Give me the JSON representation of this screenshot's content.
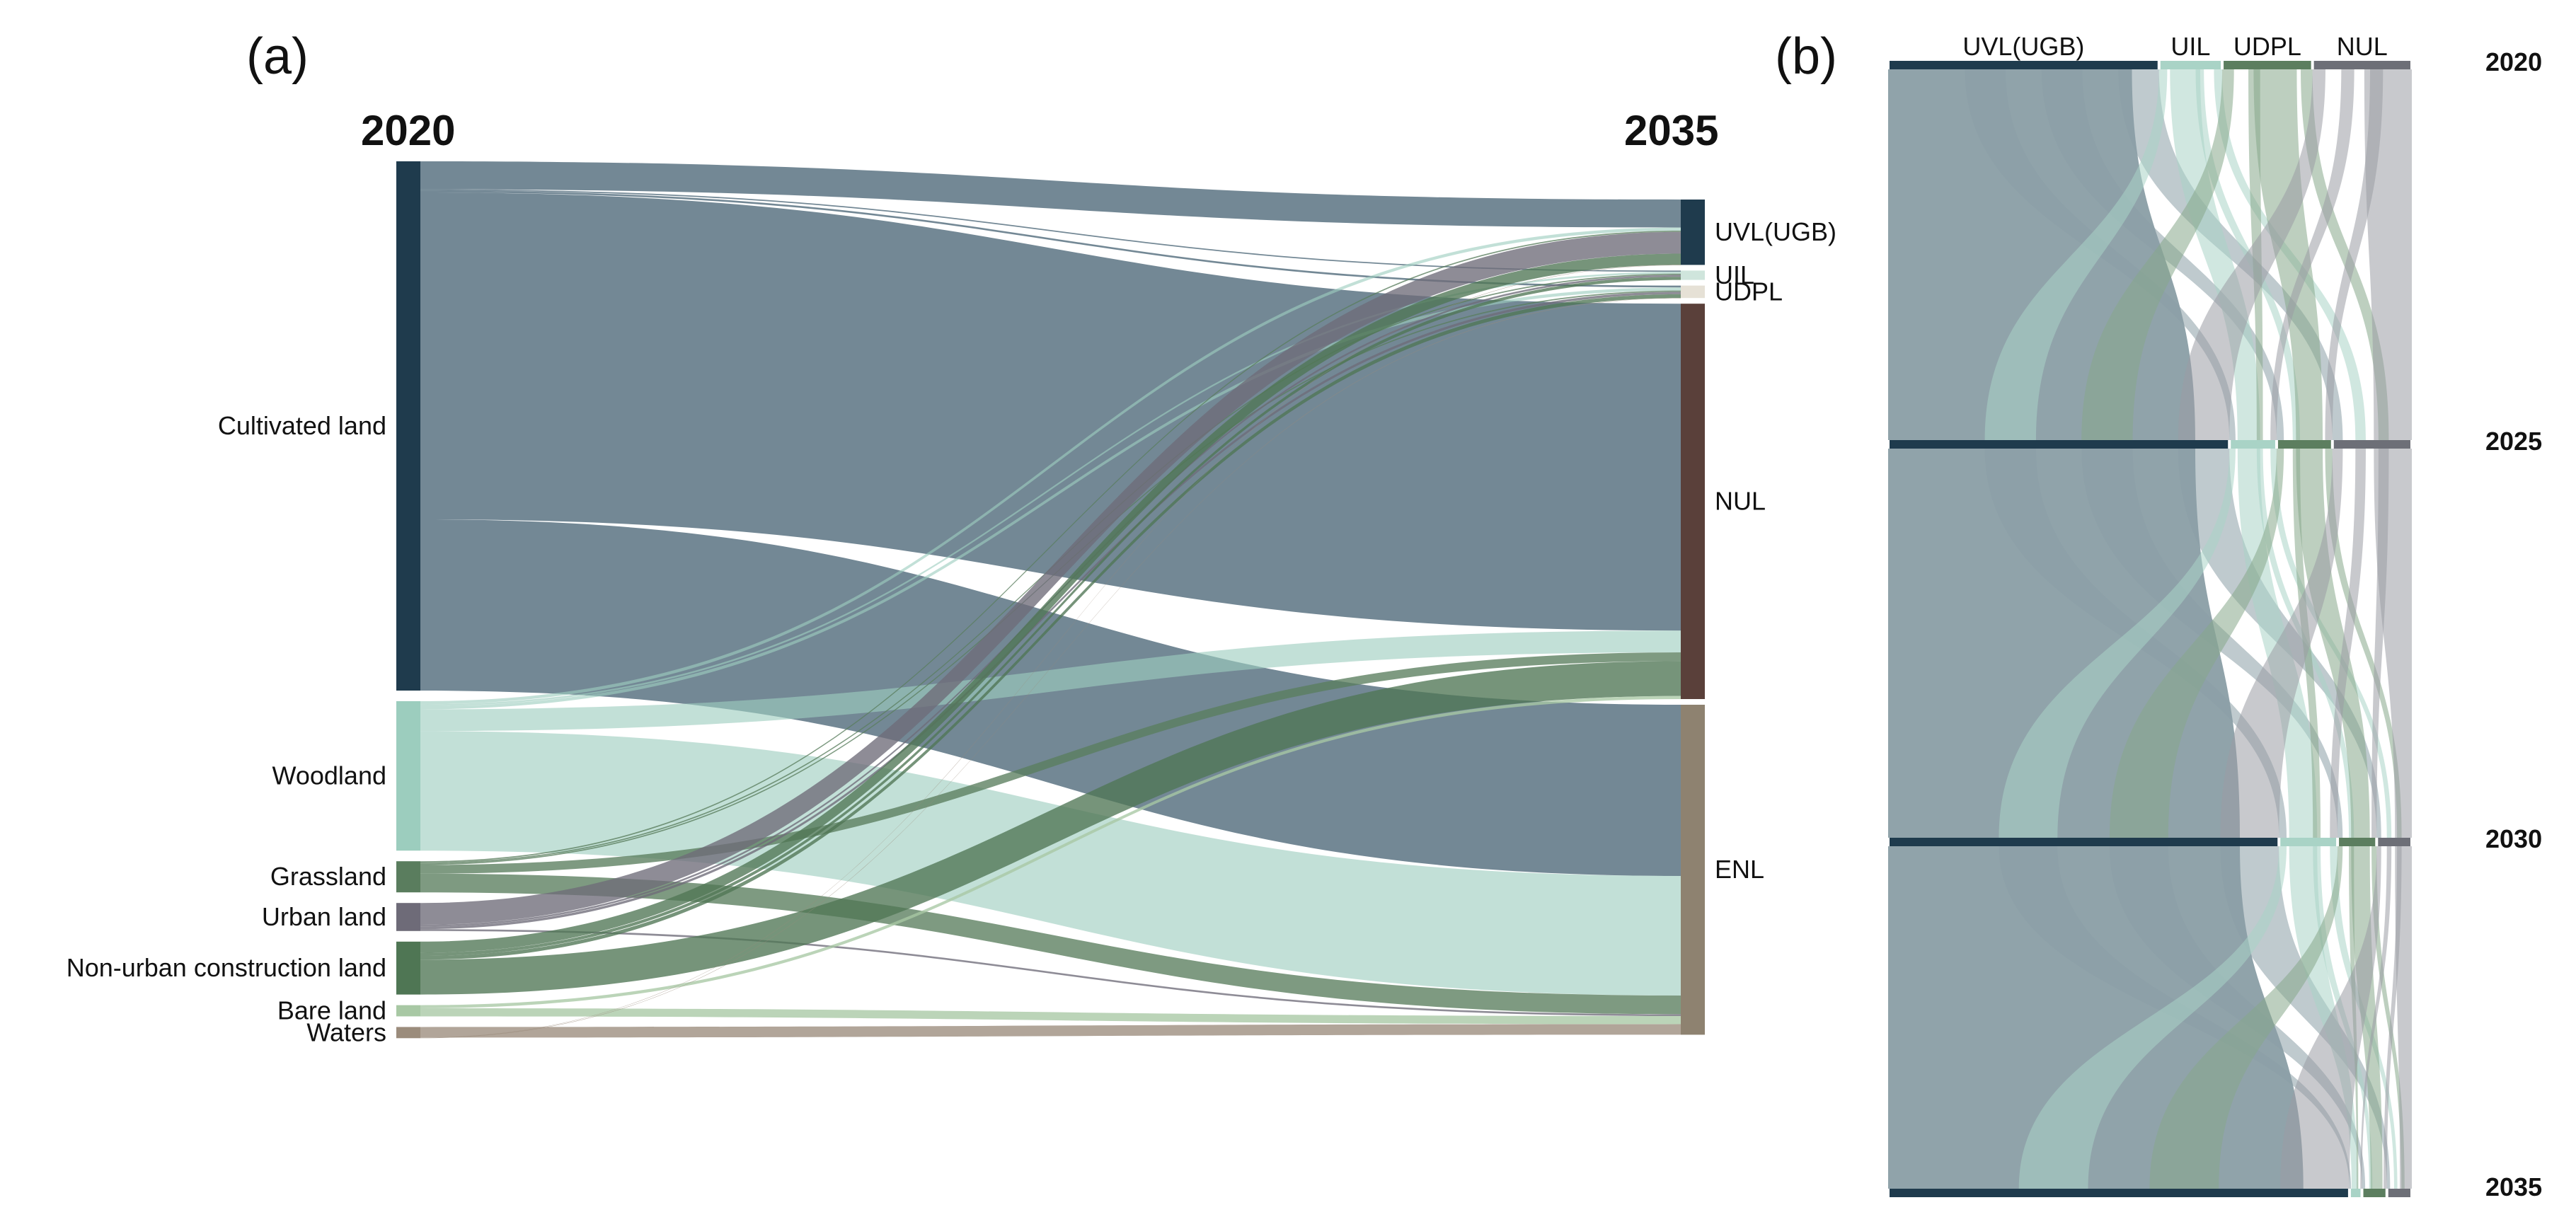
{
  "figure": {
    "panel_a": "(a)",
    "panel_b": "(b)"
  },
  "colors": {
    "dark_slate": "#1f3b4d",
    "slate_flow": "#4b6677",
    "nul_brown": "#5a403a",
    "enl_taupe": "#8e8270",
    "woodland": "#9ccdbe",
    "grassland": "#5a7d5e",
    "urban": "#6e6b78",
    "nonurban": "#4f7654",
    "bare": "#a8c8a4",
    "waters": "#9b8c7c",
    "uil_light": "#a9d3c6",
    "udpl_green": "#5c7e5f",
    "nul_gray": "#6d6f77",
    "b_slate_fill": "#8a9ea5"
  },
  "chart_data": [
    {
      "type": "sankey",
      "panel": "(a)",
      "title": "",
      "source_year": "2020",
      "target_year": "2035",
      "sources": [
        "Cultivated land",
        "Woodland",
        "Grassland",
        "Urban land",
        "Non-urban construction land",
        "Bare land",
        "Waters"
      ],
      "source_values": [
        850,
        240,
        50,
        45,
        85,
        18,
        18
      ],
      "targets": [
        "UVL(UGB)",
        "UIL",
        "UDPL",
        "NUL",
        "ENL"
      ],
      "target_values": [
        105,
        15,
        20,
        635,
        530
      ],
      "flows": [
        {
          "from": "Cultivated land",
          "to": "UVL(UGB)",
          "value": 45
        },
        {
          "from": "Cultivated land",
          "to": "UIL",
          "value": 2
        },
        {
          "from": "Cultivated land",
          "to": "UDPL",
          "value": 3
        },
        {
          "from": "Cultivated land",
          "to": "NUL",
          "value": 525
        },
        {
          "from": "Cultivated land",
          "to": "ENL",
          "value": 275
        },
        {
          "from": "Woodland",
          "to": "UVL(UGB)",
          "value": 5
        },
        {
          "from": "Woodland",
          "to": "UIL",
          "value": 3
        },
        {
          "from": "Woodland",
          "to": "UDPL",
          "value": 5
        },
        {
          "from": "Woodland",
          "to": "NUL",
          "value": 35
        },
        {
          "from": "Woodland",
          "to": "ENL",
          "value": 192
        },
        {
          "from": "Grassland",
          "to": "UVL(UGB)",
          "value": 2
        },
        {
          "from": "Grassland",
          "to": "UIL",
          "value": 2
        },
        {
          "from": "Grassland",
          "to": "UDPL",
          "value": 2
        },
        {
          "from": "Grassland",
          "to": "NUL",
          "value": 14
        },
        {
          "from": "Grassland",
          "to": "ENL",
          "value": 30
        },
        {
          "from": "Urban land",
          "to": "UVL(UGB)",
          "value": 35
        },
        {
          "from": "Urban land",
          "to": "UIL",
          "value": 3
        },
        {
          "from": "Urban land",
          "to": "UDPL",
          "value": 4
        },
        {
          "from": "Urban land",
          "to": "ENL",
          "value": 3
        },
        {
          "from": "Non-urban construction land",
          "to": "UVL(UGB)",
          "value": 18
        },
        {
          "from": "Non-urban construction land",
          "to": "UIL",
          "value": 5
        },
        {
          "from": "Non-urban construction land",
          "to": "UDPL",
          "value": 6
        },
        {
          "from": "Non-urban construction land",
          "to": "NUL",
          "value": 56
        },
        {
          "from": "Bare land",
          "to": "NUL",
          "value": 5
        },
        {
          "from": "Bare land",
          "to": "ENL",
          "value": 13
        },
        {
          "from": "Waters",
          "to": "ENL",
          "value": 17
        },
        {
          "from": "Waters",
          "to": "UVL(UGB)",
          "value": 0.5
        },
        {
          "from": "Waters",
          "to": "UDPL",
          "value": 0.5
        }
      ]
    },
    {
      "type": "sankey",
      "panel": "(b)",
      "title": "",
      "categories": [
        "UVL(UGB)",
        "UIL",
        "UDPL",
        "NUL"
      ],
      "years": [
        "2020",
        "2025",
        "2030",
        "2035"
      ],
      "stock_values": [
        [
          90,
          21,
          30,
          33
        ],
        [
          159,
          22,
          26,
          37
        ],
        [
          200,
          30,
          20,
          18
        ],
        [
          222,
          6,
          12,
          12
        ]
      ]
    }
  ]
}
